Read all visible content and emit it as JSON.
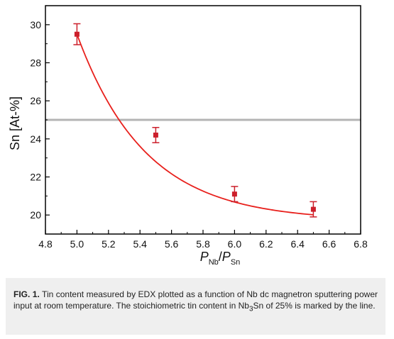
{
  "chart_data": {
    "type": "scatter",
    "x": [
      5.0,
      5.5,
      6.0,
      6.5
    ],
    "y": [
      29.5,
      24.2,
      21.1,
      20.3
    ],
    "y_err": [
      0.55,
      0.4,
      0.4,
      0.4
    ],
    "fit_curve": {
      "type": "exponential-decay",
      "y0": 19.7,
      "A": 9.8,
      "k": 2.3,
      "x_start": 5.0
    },
    "reference_line": {
      "y": 25.0
    },
    "xlim": [
      4.8,
      6.8
    ],
    "ylim": [
      19.0,
      31.0
    ],
    "x_ticks": [
      "4.8",
      "5.0",
      "5.2",
      "5.4",
      "5.6",
      "5.8",
      "6.0",
      "6.2",
      "6.4",
      "6.6",
      "6.8"
    ],
    "y_ticks": [
      "20",
      "22",
      "24",
      "26",
      "28",
      "30"
    ],
    "xlabel": {
      "p1": "P",
      "sub1": "Nb",
      "slash": "/",
      "p2": "P",
      "sub2": "Sn"
    },
    "ylabel": "Sn [At-%]",
    "grid": false,
    "colors": {
      "data": "#cc1f2b",
      "fit": "#e8201c",
      "reference": "#b4b4b4",
      "axis": "#000000"
    }
  },
  "caption": {
    "label": "FIG. 1.",
    "text1": " Tin content measured by EDX plotted as a function of Nb dc magnetron sputtering power input at room temperature. The stoichiometric tin content in Nb",
    "sub": "3",
    "text2": "Sn of 25% is marked by the line."
  }
}
